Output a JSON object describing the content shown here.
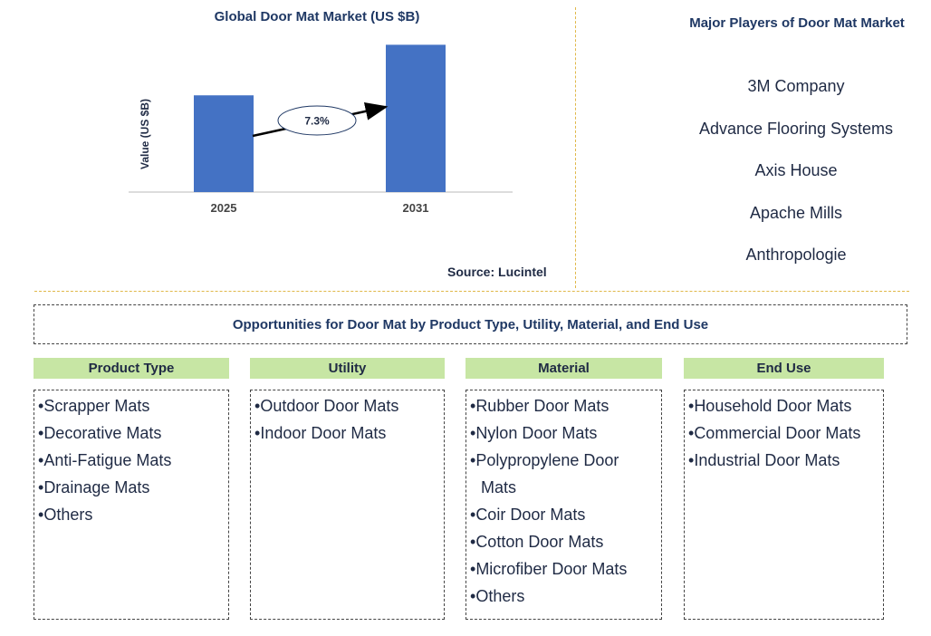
{
  "chart_data": {
    "type": "bar",
    "title": "Global Door Mat Market (US $B)",
    "ylabel": "Value (US $B)",
    "xlabel": "",
    "categories": [
      "2025",
      "2031"
    ],
    "values": [
      4.4,
      6.7
    ],
    "ylim": [
      0,
      7.5
    ],
    "bar_color": "#4472c4",
    "annotation": {
      "label": "7.3%",
      "type": "CAGR arrow"
    },
    "grid": false,
    "legend": "none"
  },
  "source": "Source: Lucintel",
  "players": {
    "title": "Major Players of Door Mat Market",
    "items": [
      "3M Company",
      "Advance Flooring Systems",
      "Axis House",
      "Apache Mills",
      "Anthropologie"
    ]
  },
  "opportunities": {
    "title": "Opportunities for Door Mat by Product Type, Utility, Material, and End Use",
    "columns": [
      {
        "header": "Product Type",
        "items": [
          "Scrapper Mats",
          "Decorative Mats",
          "Anti-Fatigue Mats",
          "Drainage Mats",
          "Others"
        ]
      },
      {
        "header": "Utility",
        "items": [
          "Outdoor Door Mats",
          "Indoor Door Mats"
        ]
      },
      {
        "header": "Material",
        "items": [
          "Rubber Door Mats",
          "Nylon Door Mats",
          "Polypropylene Door Mats",
          "Coir Door Mats",
          "Cotton Door Mats",
          "Microfiber Door Mats",
          "Others"
        ]
      },
      {
        "header": "End Use",
        "items": [
          "Household Door Mats",
          "Commercial Door Mats",
          "Industrial Door Mats"
        ]
      }
    ]
  },
  "colors": {
    "header_fill": "#c7e6a4",
    "divider": "#e0b84a",
    "title": "#1f3864"
  }
}
